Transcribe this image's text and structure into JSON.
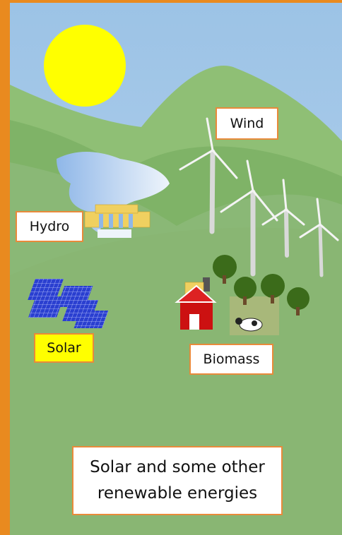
{
  "labels": {
    "wind": "Wind",
    "hydro": "Hydro",
    "solar": "Solar",
    "biomass": "Biomass"
  },
  "caption": [
    "Solar and some other",
    "renewable energies"
  ]
}
